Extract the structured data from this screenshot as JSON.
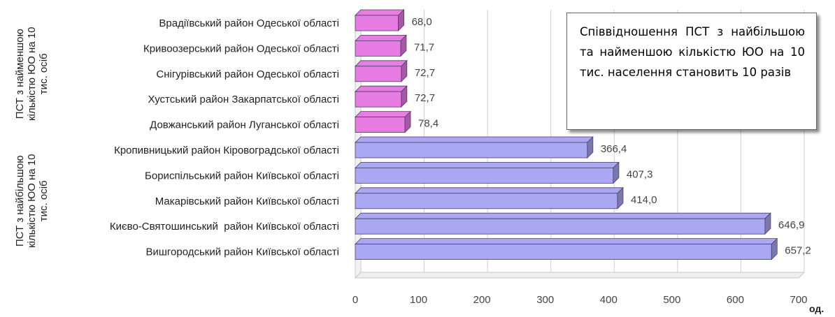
{
  "chart_data": {
    "type": "bar",
    "orientation": "horizontal",
    "xlim": [
      0,
      700
    ],
    "xticks": [
      "0",
      "100",
      "200",
      "300",
      "400",
      "500",
      "600",
      "700"
    ],
    "unit": "од.",
    "groups": [
      {
        "label": "ПСТ з найменшою кількістю ЮО на 10 тис. осіб",
        "color": "#e77ce2"
      },
      {
        "label": "ПСТ з найбільшою кількістю ЮО на 10 тис. осіб",
        "color": "#aaa8f2"
      }
    ],
    "bars": [
      {
        "category": "Врадіївський район Одеської області",
        "value": 68.0,
        "label": "68,0",
        "group": 0
      },
      {
        "category": "Кривоозерський район Одеської області",
        "value": 71.7,
        "label": "71,7",
        "group": 0
      },
      {
        "category": "Снігурівський район Одеської області",
        "value": 72.7,
        "label": "72,7",
        "group": 0
      },
      {
        "category": "Хустський район Закарпатської області",
        "value": 72.7,
        "label": "72,7",
        "group": 0
      },
      {
        "category": "Довжанський район Луганської області",
        "value": 78.4,
        "label": "78,4",
        "group": 0
      },
      {
        "category": "Кропивницький район Кіровоградської області",
        "value": 366.4,
        "label": "366,4",
        "group": 1
      },
      {
        "category": "Бориспільський район Київської області",
        "value": 407.3,
        "label": "407,3",
        "group": 1
      },
      {
        "category": "Макарівський район Київської області",
        "value": 414.0,
        "label": "414,0",
        "group": 1
      },
      {
        "category": "Києво-Святошинський  район Київської області",
        "value": 646.9,
        "label": "646,9",
        "group": 1
      },
      {
        "category": "Вишгородський район Київської області",
        "value": 657.2,
        "label": "657,2",
        "group": 1
      }
    ],
    "grid": true,
    "annotation": "Співвідношення ПСТ з найбільшою та найменшою кількістю ЮО на 10 тис. населення становить 10 разів"
  }
}
